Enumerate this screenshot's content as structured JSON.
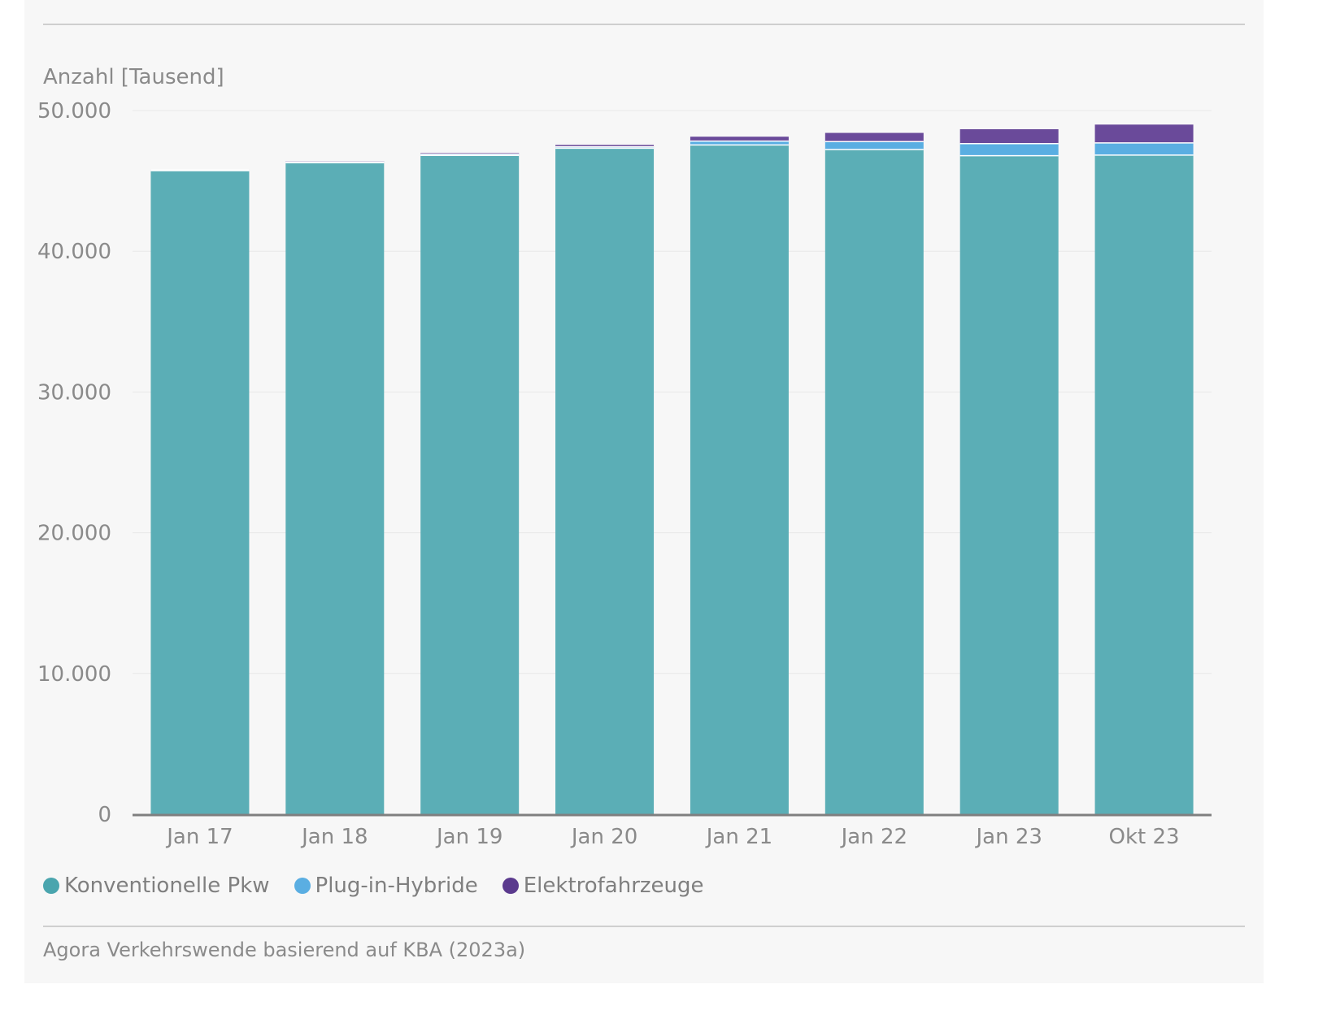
{
  "colors": {
    "conventional": "#5baeb6",
    "phev": "#5aaee2",
    "bev": "#6a4a9a",
    "grid": "#e8e8e8",
    "axis": "#808080",
    "tick_text": "#8a8a8a"
  },
  "legend": [
    {
      "label": "Konventionelle Pkw",
      "color": "#4aa5ae"
    },
    {
      "label": "Plug-in-Hybride",
      "color": "#5aaee2"
    },
    {
      "label": "Elektrofahrzeuge",
      "color": "#5b3a8e"
    }
  ],
  "source": "Agora Verkehrswende basierend auf KBA (2023a)",
  "chart_data": {
    "type": "bar",
    "stacked": true,
    "ylabel": "Anzahl [Tausend]",
    "ylim": [
      0,
      50000
    ],
    "yticks": [
      0,
      10000,
      20000,
      30000,
      40000,
      50000
    ],
    "ytick_labels": [
      "0",
      "10.000",
      "20.000",
      "30.000",
      "40.000",
      "50.000"
    ],
    "grid": true,
    "legend_position": "bottom-left",
    "categories": [
      "Jan 17",
      "Jan 18",
      "Jan 19",
      "Jan 20",
      "Jan 21",
      "Jan 22",
      "Jan 23",
      "Okt 23"
    ],
    "series": [
      {
        "name": "Konventionelle Pkw",
        "values": [
          45730,
          46290,
          46810,
          47320,
          47550,
          47230,
          46790,
          46830
        ]
      },
      {
        "name": "Plug-in-Hybride",
        "values": [
          45,
          67,
          100,
          100,
          280,
          560,
          860,
          870
        ]
      },
      {
        "name": "Elektrofahrzeuge",
        "values": [
          34,
          54,
          84,
          136,
          310,
          620,
          1020,
          1300
        ]
      }
    ]
  }
}
